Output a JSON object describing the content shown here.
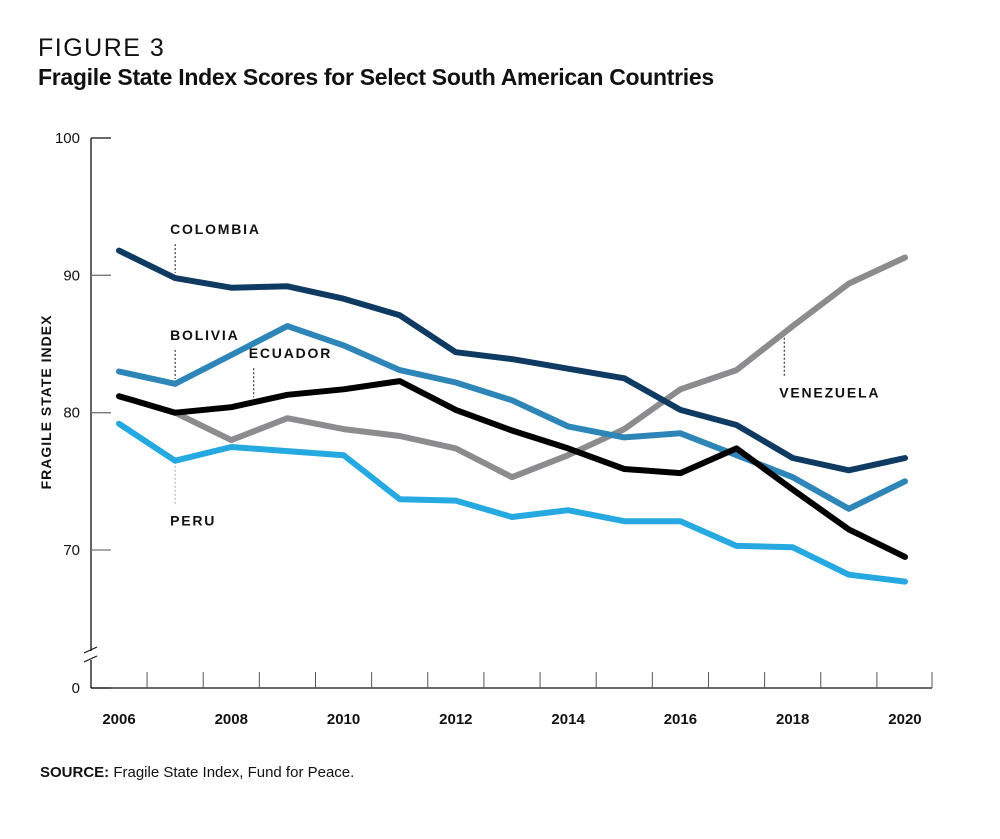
{
  "figure": {
    "label": "FIGURE 3",
    "title": "Fragile State Index Scores for Select South American Countries"
  },
  "source": {
    "prefix": "SOURCE:",
    "text": " Fragile State Index, Fund for Peace."
  },
  "chart_data": {
    "type": "line",
    "title": "Fragile State Index Scores for Select South American Countries",
    "xlabel": "",
    "ylabel": "FRAGILE STATE INDEX",
    "x": [
      2006,
      2007,
      2008,
      2009,
      2010,
      2011,
      2012,
      2013,
      2014,
      2015,
      2016,
      2017,
      2018,
      2019,
      2020
    ],
    "x_tick_labels": [
      "2006",
      "2008",
      "2010",
      "2012",
      "2014",
      "2016",
      "2018",
      "2020"
    ],
    "y_tick_labels": [
      "0",
      "70",
      "80",
      "90",
      "100"
    ],
    "ylim": [
      0,
      100
    ],
    "y_axis_break": "between 0 and 70 (visible range 62.5–100)",
    "grid": false,
    "legend": "direct labels on lines",
    "series": [
      {
        "name": "COLOMBIA",
        "color": "#0f3b63",
        "values": [
          91.8,
          89.8,
          89.1,
          89.2,
          88.3,
          87.1,
          84.4,
          83.9,
          83.2,
          82.5,
          80.2,
          79.1,
          76.7,
          75.8,
          76.7
        ]
      },
      {
        "name": "BOLIVIA",
        "color": "#2e86b8",
        "values": [
          83.0,
          82.1,
          84.2,
          86.3,
          84.9,
          83.1,
          82.2,
          80.9,
          79.0,
          78.2,
          78.5,
          76.9,
          75.3,
          73.0,
          75.0
        ]
      },
      {
        "name": "ECUADOR",
        "color": "#000000",
        "values": [
          81.2,
          80.0,
          80.4,
          81.3,
          81.7,
          82.3,
          80.2,
          78.7,
          77.4,
          75.9,
          75.6,
          77.4,
          74.4,
          71.5,
          69.5
        ]
      },
      {
        "name": "VENEZUELA",
        "color": "#8c8c8e",
        "values": [
          81.2,
          80.0,
          78.0,
          79.6,
          78.8,
          78.3,
          77.4,
          75.3,
          76.9,
          78.8,
          81.7,
          83.1,
          86.3,
          89.4,
          91.3
        ]
      },
      {
        "name": "PERU",
        "color": "#25a9e0",
        "values": [
          79.2,
          76.5,
          77.5,
          77.2,
          76.9,
          73.7,
          73.6,
          72.4,
          72.9,
          72.1,
          72.1,
          70.3,
          70.2,
          68.2,
          67.7
        ]
      }
    ],
    "annotations": [
      {
        "series": "COLOMBIA",
        "label": "COLOMBIA",
        "year": 2007,
        "side": "above"
      },
      {
        "series": "BOLIVIA",
        "label": "BOLIVIA",
        "year": 2007,
        "side": "above"
      },
      {
        "series": "ECUADOR",
        "label": "ECUADOR",
        "year": 2008.4,
        "side": "above"
      },
      {
        "series": "PERU",
        "label": "PERU",
        "year": 2007,
        "side": "below"
      },
      {
        "series": "VENEZUELA",
        "label": "VENEZUELA",
        "year": 2017.85,
        "side": "below"
      }
    ]
  }
}
